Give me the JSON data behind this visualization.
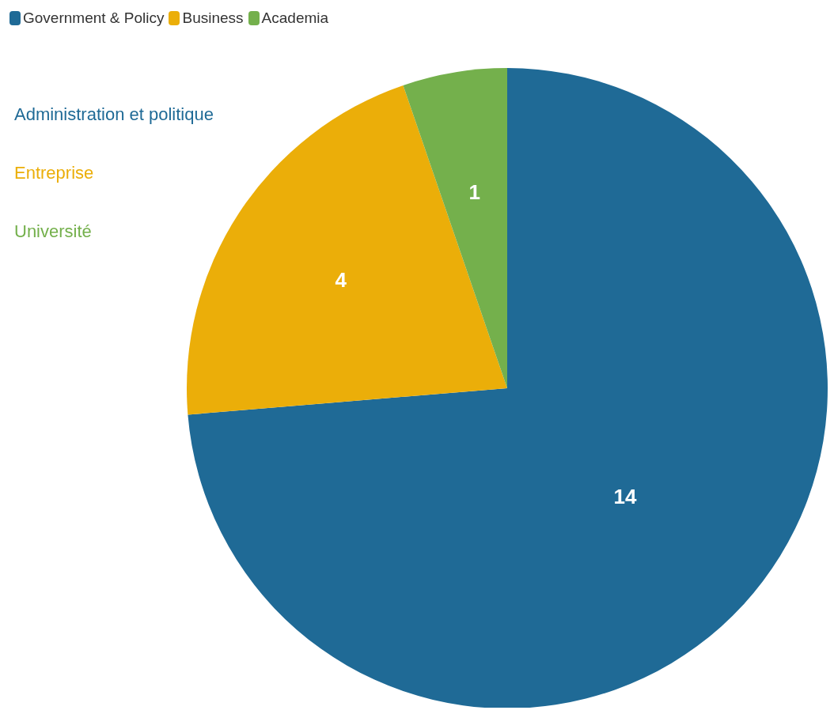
{
  "chart_data": {
    "type": "pie",
    "categories": [
      "Government & Policy",
      "Business",
      "Academia"
    ],
    "values": [
      14,
      4,
      1
    ],
    "colors": [
      "#1f6a96",
      "#ebae09",
      "#74b04c"
    ],
    "data_labels": true,
    "legend": "top left",
    "annotations": [
      "Administration et politique",
      "Entreprise",
      "Université"
    ]
  }
}
